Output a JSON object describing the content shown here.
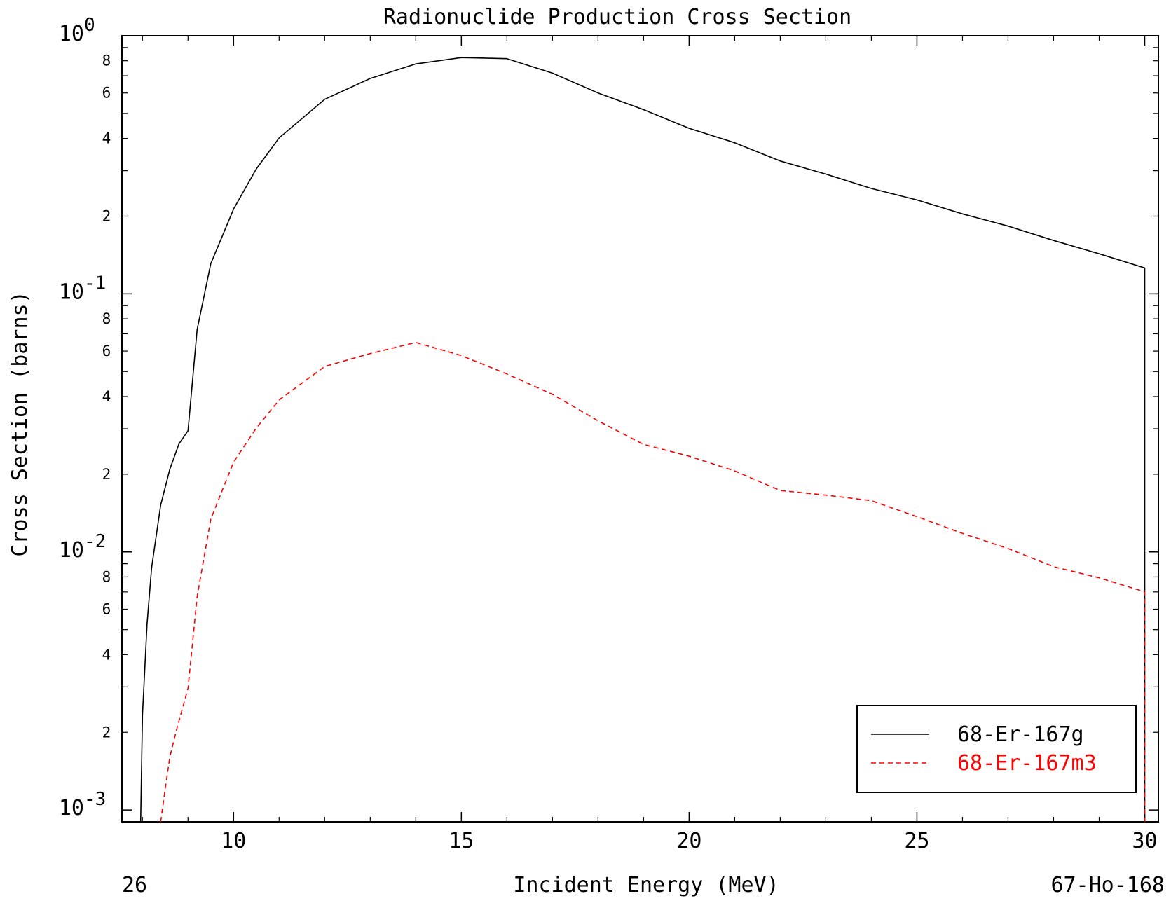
{
  "chart_data": {
    "type": "line",
    "title_partial": "(?,?)",
    "title": "Radionuclide Production Cross Section",
    "xlabel": "Incident Energy (MeV)",
    "ylabel": "Cross Section (barns)",
    "footer_left": "26",
    "footer_right": "67-Ho-168",
    "x_scale": "linear",
    "y_scale": "log",
    "xlim": [
      7.55,
      30.3
    ],
    "ylim": [
      0.0009,
      1.0
    ],
    "x_ticks": [
      10,
      15,
      20,
      25,
      30
    ],
    "y_decades": [
      {
        "value": 1,
        "base": "10",
        "exp": "0"
      },
      {
        "value": 0.1,
        "base": "10",
        "exp": "-1"
      },
      {
        "value": 0.01,
        "base": "10",
        "exp": "-2"
      },
      {
        "value": 0.001,
        "base": "10",
        "exp": "-3"
      }
    ],
    "y_minor_labels": [
      "2",
      "4",
      "6",
      "8"
    ],
    "grid": false,
    "legend_position": "bottom-right",
    "series": [
      {
        "name": "68-Er-167g",
        "color": "#000000",
        "style": "solid",
        "x": [
          7.96,
          8.0,
          8.1,
          8.2,
          8.4,
          8.6,
          8.8,
          9.0,
          9.2,
          9.5,
          10.0,
          10.5,
          11.0,
          12.0,
          13.0,
          14.0,
          15.0,
          16.0,
          17.0,
          18.0,
          19.0,
          20.0,
          21.0,
          22.0,
          23.0,
          24.0,
          25.0,
          26.0,
          27.0,
          28.0,
          29.0,
          30.0,
          30.0
        ],
        "y": [
          0.0009,
          0.00233,
          0.00524,
          0.00866,
          0.0152,
          0.0209,
          0.0262,
          0.0295,
          0.0727,
          0.131,
          0.213,
          0.305,
          0.402,
          0.567,
          0.683,
          0.778,
          0.823,
          0.815,
          0.716,
          0.6,
          0.517,
          0.438,
          0.385,
          0.327,
          0.291,
          0.256,
          0.231,
          0.204,
          0.183,
          0.161,
          0.143,
          0.126,
          0.0009
        ]
      },
      {
        "name": "68-Er-167m3",
        "color": "#ff0000",
        "style": "dashed",
        "x": [
          8.4,
          8.5,
          8.6,
          8.75,
          9.0,
          9.2,
          9.5,
          10.0,
          10.5,
          11.0,
          12.0,
          13.0,
          14.0,
          15.0,
          16.0,
          17.0,
          18.0,
          19.0,
          20.0,
          21.0,
          22.0,
          23.0,
          24.0,
          25.0,
          26.0,
          27.0,
          28.0,
          29.0,
          30.0,
          30.0
        ],
        "y": [
          0.0009,
          0.00121,
          0.0016,
          0.00205,
          0.00296,
          0.0067,
          0.0134,
          0.0223,
          0.0302,
          0.0388,
          0.0523,
          0.0587,
          0.0648,
          0.0577,
          0.0489,
          0.0408,
          0.0322,
          0.0261,
          0.0235,
          0.0206,
          0.0173,
          0.0166,
          0.0158,
          0.0137,
          0.0118,
          0.0103,
          0.00877,
          0.00794,
          0.00701,
          0.0009
        ]
      }
    ]
  }
}
